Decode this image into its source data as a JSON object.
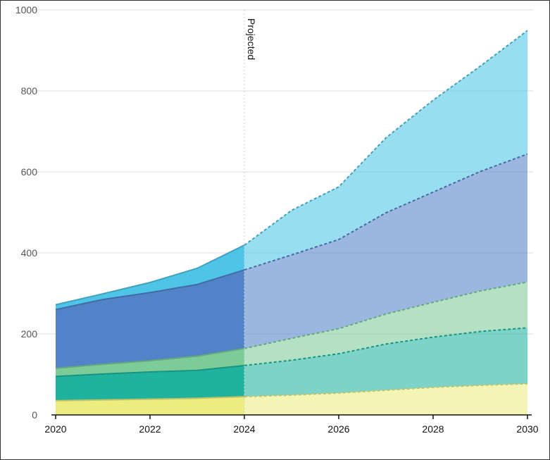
{
  "chart_data": {
    "type": "area",
    "stacked": true,
    "x": [
      2020,
      2021,
      2022,
      2023,
      2024,
      2025,
      2026,
      2027,
      2028,
      2029,
      2030
    ],
    "xticks": [
      2020,
      2022,
      2024,
      2026,
      2028,
      2030
    ],
    "ylim": [
      0,
      1000
    ],
    "yticks": [
      0,
      200,
      400,
      600,
      800,
      1000
    ],
    "grid": "horizontal",
    "projection_start": 2024,
    "annotation": "Projected",
    "series": [
      {
        "color": "#ecec80",
        "values": [
          35,
          37,
          39,
          41,
          45,
          49,
          54,
          61,
          68,
          73,
          77
        ]
      },
      {
        "color": "#1fb39e",
        "values": [
          60,
          64,
          67,
          69,
          77,
          86,
          97,
          114,
          124,
          133,
          138
        ]
      },
      {
        "color": "#7dcc97",
        "values": [
          20,
          24,
          28,
          35,
          42,
          54,
          62,
          74,
          86,
          100,
          113
        ]
      },
      {
        "color": "#5283c8",
        "values": [
          145,
          160,
          168,
          177,
          194,
          206,
          220,
          250,
          272,
          295,
          316
        ]
      },
      {
        "color": "#4ec4e6",
        "values": [
          12,
          14,
          25,
          40,
          61,
          110,
          130,
          185,
          227,
          260,
          305
        ]
      }
    ]
  }
}
